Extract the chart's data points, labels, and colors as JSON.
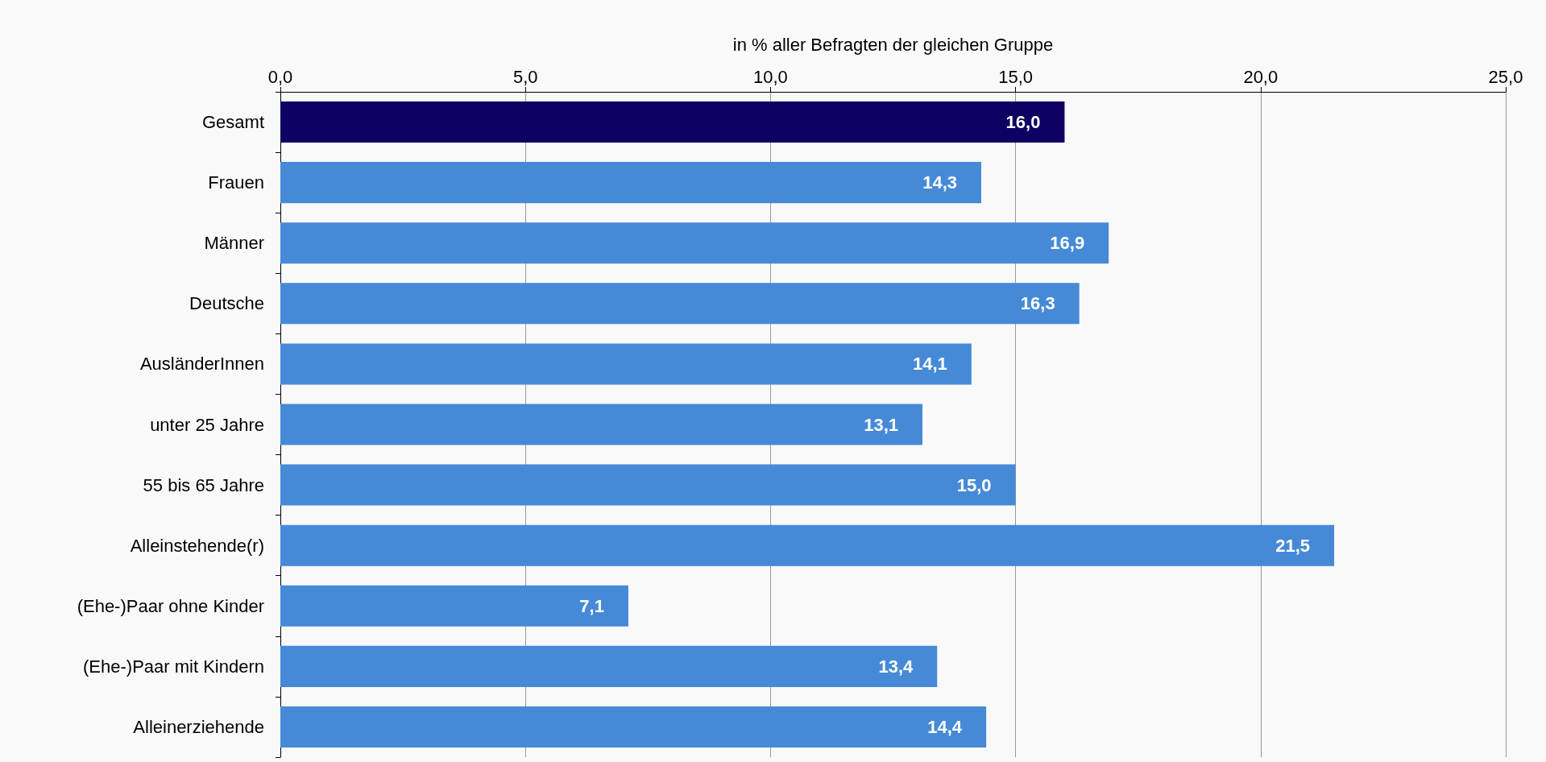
{
  "chart_data": {
    "type": "bar",
    "orientation": "horizontal",
    "xlabel": "in % aller Befragten der gleichen Gruppe",
    "categories": [
      "Gesamt",
      "Frauen",
      "Männer",
      "Deutsche",
      "AusländerInnen",
      "unter 25 Jahre",
      "55 bis 65 Jahre",
      "Alleinstehende(r)",
      "(Ehe-)Paar ohne Kinder",
      "(Ehe-)Paar mit Kindern",
      "Alleinerziehende"
    ],
    "values": [
      16.0,
      14.3,
      16.9,
      16.3,
      14.1,
      13.1,
      15.0,
      21.5,
      7.1,
      13.4,
      14.4
    ],
    "value_labels": [
      "16,0",
      "14,3",
      "16,9",
      "16,3",
      "14,1",
      "13,1",
      "15,0",
      "21,5",
      "7,1",
      "13,4",
      "14,4"
    ],
    "colors": [
      "#0d0062",
      "#468ad7",
      "#468ad7",
      "#468ad7",
      "#468ad7",
      "#468ad7",
      "#468ad7",
      "#468ad7",
      "#468ad7",
      "#468ad7",
      "#468ad7"
    ],
    "xlim": [
      0,
      25
    ],
    "xticks": [
      {
        "value": 0,
        "label": "0,0"
      },
      {
        "value": 5,
        "label": "5,0"
      },
      {
        "value": 10,
        "label": "10,0"
      },
      {
        "value": 15,
        "label": "15,0"
      },
      {
        "value": 20,
        "label": "20,0"
      },
      {
        "value": 25,
        "label": "25,0"
      }
    ],
    "grid": "x"
  }
}
